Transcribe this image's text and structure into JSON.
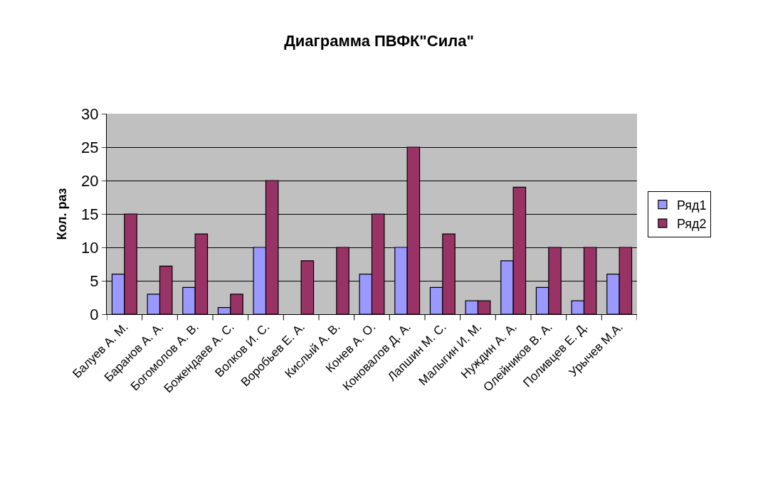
{
  "chart_data": {
    "type": "bar",
    "title": "Диаграмма ПВФК\"Сила\"",
    "ylabel": "Кол. раз",
    "categories": [
      "Балуев А. М.",
      "Баранов А. А.",
      "Богомолов А. В.",
      "Божендаев А. С.",
      "Волков И. С.",
      "Воробьев Е. А.",
      "Кислый А. В.",
      "Конев А. О.",
      "Коновалов Д. А.",
      "Лапшин М. С.",
      "Малыгин И. М.",
      "Нуждин А. А.",
      "Олейников В. А.",
      "Поливцев Е. Д.",
      "Урычев М.А."
    ],
    "series": [
      {
        "name": "Ряд1",
        "color": "#9999ff",
        "values": [
          6,
          3,
          4,
          1,
          10,
          null,
          null,
          6,
          10,
          4,
          2,
          8,
          4,
          2,
          6
        ]
      },
      {
        "name": "Ряд2",
        "color": "#993366",
        "values": [
          15,
          7.2,
          12,
          3,
          20,
          8,
          10,
          15,
          25,
          12,
          2,
          19,
          10,
          10,
          10
        ]
      }
    ],
    "ylim": [
      0,
      30
    ],
    "yticks": [
      0,
      5,
      10,
      15,
      20,
      25,
      30
    ],
    "grid": "y",
    "legend": "right"
  }
}
